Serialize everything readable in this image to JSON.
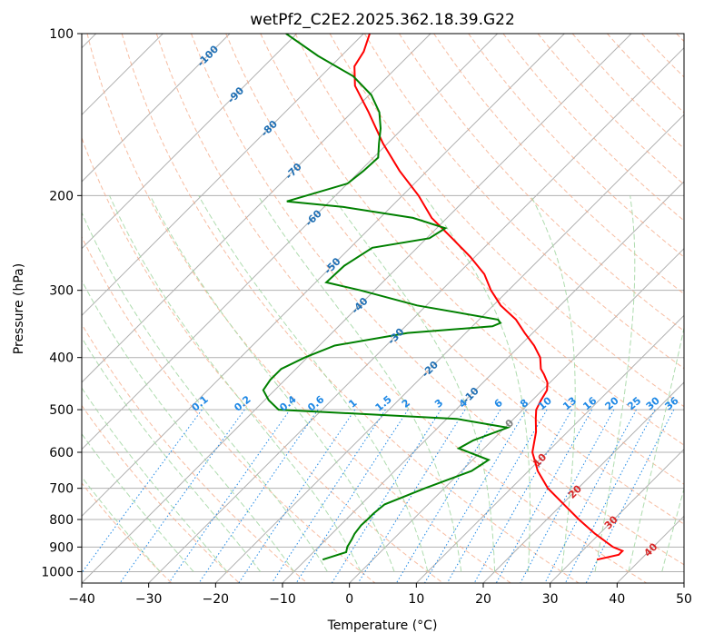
{
  "chart_data": {
    "type": "line",
    "title": "wetPf2_C2E2.2025.362.18.39.G22",
    "xlabel": "Temperature (°C)",
    "ylabel": "Pressure (hPa)",
    "xlim": [
      -40,
      50
    ],
    "ylim": [
      1050,
      100
    ],
    "y_scale": "log",
    "x_ticks": [
      "−40",
      "−30",
      "−20",
      "−10",
      "0",
      "10",
      "20",
      "30",
      "40",
      "50"
    ],
    "y_ticks": [
      "100",
      "200",
      "300",
      "400",
      "500",
      "600",
      "700",
      "800",
      "900",
      "1000"
    ],
    "grid": true,
    "skew": true,
    "colors": {
      "temperature": "#ff0000",
      "dewpoint": "#008000",
      "dry_adiabat": "#f4a582",
      "moist_adiabat": "#a6d8a6",
      "mixing_ratio": "#1e88e5",
      "isotherm_label_cold": "#1f6fb4",
      "isotherm_label_warm": "#d62728",
      "isotherm_label_zero": "#808080"
    },
    "series": [
      {
        "key": "temperature",
        "pressure": [
          950,
          930,
          915,
          900,
          850,
          800,
          750,
          700,
          650,
          600,
          550,
          520,
          500,
          480,
          460,
          445,
          430,
          420,
          400,
          380,
          360,
          340,
          320,
          300,
          280,
          260,
          240,
          220,
          200,
          180,
          160,
          140,
          125,
          115,
          108,
          100
        ],
        "temperature": [
          33.5,
          36,
          36,
          34,
          29.3,
          24.8,
          20.3,
          15.5,
          11.4,
          7.8,
          5.3,
          3.3,
          2.0,
          1.3,
          0.7,
          -0.4,
          -2.1,
          -3.4,
          -5.2,
          -7.9,
          -11.2,
          -14.5,
          -18.9,
          -22.6,
          -26.0,
          -30.7,
          -36.2,
          -42.3,
          -47.6,
          -54.1,
          -60.7,
          -67.5,
          -73.5,
          -76.5,
          -77.3,
          -79.1
        ]
      },
      {
        "key": "dewpoint",
        "pressure": [
          950,
          920,
          900,
          870,
          850,
          820,
          800,
          780,
          750,
          700,
          650,
          620,
          590,
          570,
          540,
          520,
          500,
          480,
          460,
          440,
          420,
          400,
          380,
          360,
          350,
          345,
          340,
          320,
          300,
          290,
          270,
          250,
          240,
          230,
          220,
          210,
          205,
          200,
          190,
          180,
          170,
          160,
          150,
          140,
          130,
          120,
          110,
          100
        ],
        "dewpoint": [
          -7.5,
          -5.1,
          -5.7,
          -6.2,
          -6.6,
          -6.9,
          -6.8,
          -6.8,
          -6.5,
          -2.9,
          1.5,
          2.4,
          -3.8,
          -2.8,
          0.4,
          -8.5,
          -36.5,
          -39.4,
          -41.7,
          -42.2,
          -42.2,
          -40.4,
          -37.7,
          -28.7,
          -17.0,
          -16.3,
          -17.2,
          -31.4,
          -42.1,
          -48.4,
          -48.2,
          -46.7,
          -39.6,
          -38.7,
          -45.1,
          -57.1,
          -66.4,
          -64.3,
          -60.0,
          -59.5,
          -59.3,
          -61.3,
          -63.3,
          -65.9,
          -69.7,
          -75.2,
          -83.5,
          -91.6
        ]
      }
    ],
    "isotherm_labels": [
      "-100",
      "-90",
      "-80",
      "-70",
      "-60",
      "-50",
      "-40",
      "-30",
      "-20",
      "-10",
      "0",
      "10",
      "20",
      "30",
      "40"
    ],
    "mixing_ratio_labels": [
      "0.1",
      "0.2",
      "0.4",
      "0.6",
      "1",
      "1.5",
      "2",
      "3",
      "4",
      "6",
      "8",
      "10",
      "13",
      "16",
      "20",
      "25",
      "30",
      "36"
    ]
  }
}
